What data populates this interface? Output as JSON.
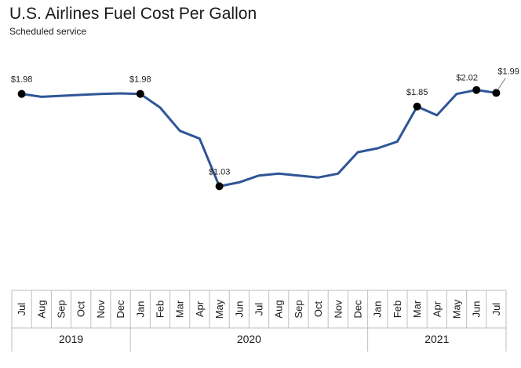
{
  "chart_data": {
    "type": "line",
    "title": "U.S. Airlines Fuel Cost Per Gallon",
    "subtitle": "Scheduled service",
    "xlabel": "",
    "ylabel": "",
    "ylim": [
      0.0,
      2.3
    ],
    "grid": false,
    "legend": "none",
    "line_color": "#2F5597",
    "marker_color": "#000000",
    "categories": [
      "Jul",
      "Aug",
      "Sep",
      "Oct",
      "Nov",
      "Dec",
      "Jan",
      "Feb",
      "Mar",
      "Apr",
      "May",
      "Jun",
      "Jul",
      "Aug",
      "Sep",
      "Oct",
      "Nov",
      "Dec",
      "Jan",
      "Feb",
      "Mar",
      "Apr",
      "May",
      "Jun",
      "Jul"
    ],
    "years": [
      {
        "label": "2019",
        "start": 0,
        "end": 5
      },
      {
        "label": "2020",
        "start": 6,
        "end": 17
      },
      {
        "label": "2021",
        "start": 18,
        "end": 24
      }
    ],
    "series": [
      {
        "values": [
          1.98,
          1.95,
          1.96,
          1.97,
          1.98,
          1.985,
          1.98,
          1.84,
          1.6,
          1.52,
          1.03,
          1.07,
          1.14,
          1.16,
          1.14,
          1.12,
          1.16,
          1.38,
          1.42,
          1.49,
          1.85,
          1.76,
          1.98,
          2.02,
          1.99
        ]
      }
    ],
    "annotations": [
      {
        "index": 0,
        "label": "$1.98",
        "position": "above"
      },
      {
        "index": 6,
        "label": "$1.98",
        "position": "above"
      },
      {
        "index": 10,
        "label": "$1.03",
        "position": "above"
      },
      {
        "index": 20,
        "label": "$1.85",
        "position": "above"
      },
      {
        "index": 23,
        "label": "$2.02",
        "position": "above-left"
      },
      {
        "index": 24,
        "label": "$1.99",
        "position": "above-right"
      }
    ]
  }
}
